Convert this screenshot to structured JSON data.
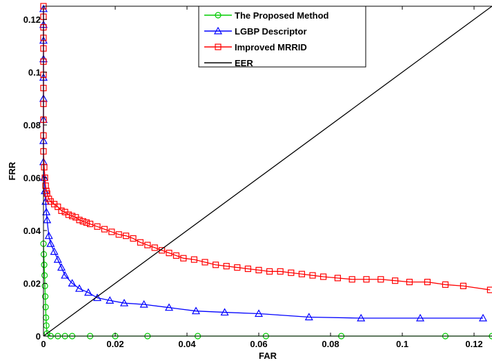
{
  "chart_data": {
    "type": "line",
    "xlabel": "FAR",
    "ylabel": "FRR",
    "xlim": [
      0,
      0.125
    ],
    "ylim": [
      0,
      0.125
    ],
    "xticks": [
      "0",
      "0.02",
      "0.04",
      "0.06",
      "0.08",
      "0.1",
      "0.12"
    ],
    "yticks": [
      "0",
      "0.02",
      "0.04",
      "0.06",
      "0.08",
      "0.1",
      "0.12"
    ],
    "grid": false,
    "legend_position": "top-center",
    "series": [
      {
        "name": "The Proposed Method",
        "color": "#00cc00",
        "marker": "circle",
        "x": [
          0,
          0.0001,
          0.0002,
          0.0003,
          0.0004,
          0.0005,
          0.0006,
          0.0007,
          0.0008,
          0.001,
          0.002,
          0.004,
          0.006,
          0.008,
          0.013,
          0.02,
          0.029,
          0.043,
          0.062,
          0.083,
          0.112,
          0.125
        ],
        "y": [
          0.035,
          0.031,
          0.027,
          0.023,
          0.019,
          0.015,
          0.011,
          0.007,
          0.004,
          0.001,
          0.0,
          0.0,
          0.0,
          0.0,
          0.0,
          0.0,
          0.0,
          0.0,
          0.0,
          0.0,
          0.0,
          0.0
        ]
      },
      {
        "name": "LGBP Descriptor",
        "color": "#0000ff",
        "marker": "triangle",
        "x": [
          0,
          0,
          0,
          0,
          0,
          0,
          0,
          0,
          0,
          0.0002,
          0.0004,
          0.0006,
          0.0008,
          0.001,
          0.0015,
          0.002,
          0.003,
          0.004,
          0.005,
          0.006,
          0.008,
          0.01,
          0.0125,
          0.015,
          0.0185,
          0.0225,
          0.028,
          0.035,
          0.0425,
          0.0505,
          0.06,
          0.074,
          0.0885,
          0.105,
          0.1225
        ],
        "y": [
          0.124,
          0.118,
          0.112,
          0.105,
          0.098,
          0.09,
          0.082,
          0.074,
          0.066,
          0.06,
          0.055,
          0.051,
          0.047,
          0.044,
          0.038,
          0.035,
          0.032,
          0.029,
          0.026,
          0.023,
          0.02,
          0.018,
          0.0165,
          0.0145,
          0.0135,
          0.0125,
          0.012,
          0.0108,
          0.0095,
          0.009,
          0.0085,
          0.0072,
          0.0068,
          0.0068,
          0.0068
        ]
      },
      {
        "name": "Improved MRRID",
        "color": "#ff0000",
        "marker": "square",
        "x": [
          0,
          0,
          0,
          0,
          0,
          0,
          0,
          0,
          0,
          0,
          0,
          0,
          0.0002,
          0.0004,
          0.0006,
          0.0008,
          0.001,
          0.0015,
          0.002,
          0.003,
          0.004,
          0.005,
          0.006,
          0.007,
          0.008,
          0.009,
          0.01,
          0.011,
          0.012,
          0.013,
          0.015,
          0.017,
          0.019,
          0.021,
          0.023,
          0.025,
          0.027,
          0.029,
          0.031,
          0.033,
          0.035,
          0.037,
          0.039,
          0.042,
          0.045,
          0.048,
          0.051,
          0.054,
          0.057,
          0.06,
          0.063,
          0.066,
          0.069,
          0.072,
          0.075,
          0.078,
          0.082,
          0.086,
          0.09,
          0.094,
          0.098,
          0.102,
          0.107,
          0.112,
          0.117,
          0.1245
        ],
        "y": [
          0.125,
          0.121,
          0.117,
          0.113,
          0.109,
          0.104,
          0.099,
          0.094,
          0.088,
          0.082,
          0.076,
          0.07,
          0.064,
          0.06,
          0.057,
          0.055,
          0.054,
          0.052,
          0.051,
          0.05,
          0.049,
          0.0475,
          0.047,
          0.046,
          0.0455,
          0.045,
          0.044,
          0.0435,
          0.043,
          0.0425,
          0.0415,
          0.0405,
          0.0395,
          0.0385,
          0.038,
          0.037,
          0.0355,
          0.0345,
          0.0335,
          0.0325,
          0.0315,
          0.0305,
          0.0295,
          0.029,
          0.028,
          0.027,
          0.0265,
          0.026,
          0.0255,
          0.025,
          0.0245,
          0.0245,
          0.024,
          0.0235,
          0.023,
          0.0225,
          0.022,
          0.0215,
          0.0215,
          0.0215,
          0.021,
          0.0205,
          0.0205,
          0.0195,
          0.019,
          0.0175
        ]
      },
      {
        "name": "EER",
        "color": "#000000",
        "marker": "none",
        "x": [
          0,
          0.125
        ],
        "y": [
          0,
          0.125
        ]
      }
    ]
  }
}
